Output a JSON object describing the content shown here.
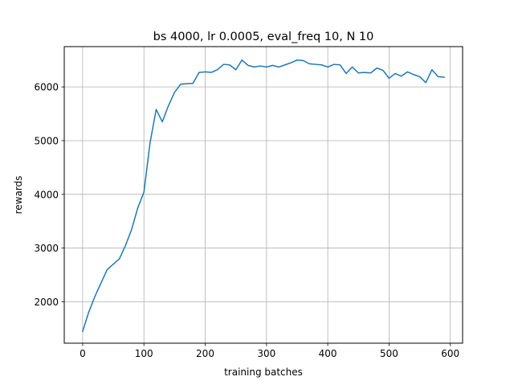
{
  "chart_data": {
    "type": "line",
    "title": "bs 4000, lr 0.0005, eval_freq 10, N 10",
    "xlabel": "training batches",
    "ylabel": "rewards",
    "xlim": [
      -30,
      620
    ],
    "ylim": [
      1230,
      6750
    ],
    "grid": true,
    "x_ticks": [
      0,
      100,
      200,
      300,
      400,
      500,
      600
    ],
    "x_tick_labels": [
      "0",
      "100",
      "200",
      "300",
      "400",
      "500",
      "600"
    ],
    "y_ticks": [
      2000,
      3000,
      4000,
      5000,
      6000
    ],
    "y_tick_labels": [
      "2000",
      "3000",
      "4000",
      "5000",
      "6000"
    ],
    "line_color": "#1f77b4",
    "series": [
      {
        "x": [
          0,
          10,
          20,
          30,
          40,
          50,
          60,
          70,
          80,
          90,
          100,
          110,
          120,
          130,
          140,
          150,
          160,
          170,
          180,
          190,
          200,
          210,
          220,
          230,
          240,
          250,
          260,
          270,
          280,
          290,
          300,
          310,
          320,
          330,
          340,
          350,
          360,
          370,
          380,
          390,
          400,
          410,
          420,
          430,
          440,
          450,
          460,
          470,
          480,
          490,
          500,
          510,
          520,
          530,
          540,
          550,
          560,
          570,
          580,
          590
        ],
        "values": [
          1450,
          1810,
          2100,
          2350,
          2600,
          2700,
          2800,
          3050,
          3350,
          3750,
          4040,
          4960,
          5580,
          5350,
          5650,
          5900,
          6050,
          6060,
          6065,
          6270,
          6280,
          6270,
          6320,
          6420,
          6410,
          6320,
          6500,
          6400,
          6370,
          6390,
          6370,
          6400,
          6370,
          6410,
          6450,
          6500,
          6490,
          6430,
          6420,
          6410,
          6370,
          6420,
          6410,
          6250,
          6370,
          6260,
          6270,
          6260,
          6350,
          6310,
          6160,
          6250,
          6200,
          6280,
          6230,
          6190,
          6080,
          6320,
          6190,
          6180
        ]
      }
    ]
  }
}
